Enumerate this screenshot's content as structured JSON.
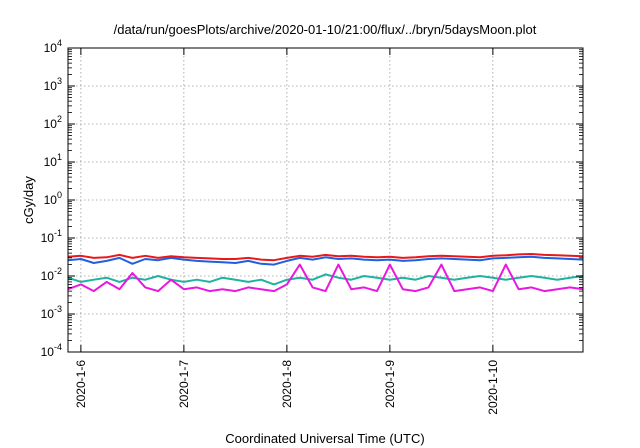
{
  "chart_data": {
    "type": "line",
    "title": "/data/run/goesPlots/archive/2020-01-10/21:00/flux/../bryn/5daysMoon.plot",
    "xlabel": "Coordinated Universal Time (UTC)",
    "ylabel": "cGy/day",
    "y_scale": "log",
    "ylim": [
      0.0001,
      10000
    ],
    "xlim": [
      "2020-01-05 21:00",
      "2020-01-10 21:00"
    ],
    "grid": true,
    "legend": "none",
    "x_ticks": [
      {
        "value": "2020-01-06 00:00",
        "label": "2020-1-6"
      },
      {
        "value": "2020-01-07 00:00",
        "label": "2020-1-7"
      },
      {
        "value": "2020-01-08 00:00",
        "label": "2020-1-8"
      },
      {
        "value": "2020-01-09 00:00",
        "label": "2020-1-9"
      },
      {
        "value": "2020-01-10 00:00",
        "label": "2020-1-10"
      }
    ],
    "y_ticks": [
      {
        "value": 0.0001,
        "base": "10",
        "exp": "-4"
      },
      {
        "value": 0.001,
        "base": "10",
        "exp": "-3"
      },
      {
        "value": 0.01,
        "base": "10",
        "exp": "-2"
      },
      {
        "value": 0.1,
        "base": "10",
        "exp": "-1"
      },
      {
        "value": 1,
        "base": "10",
        "exp": "0"
      },
      {
        "value": 10,
        "base": "10",
        "exp": "1"
      },
      {
        "value": 100,
        "base": "10",
        "exp": "2"
      },
      {
        "value": 1000,
        "base": "10",
        "exp": "3"
      },
      {
        "value": 10000,
        "base": "10",
        "exp": "4"
      }
    ],
    "series": [
      {
        "color": "#e8191a",
        "x": [
          "2020-01-05 21:00",
          "2020-01-06 00:00",
          "2020-01-06 03:00",
          "2020-01-06 06:00",
          "2020-01-06 09:00",
          "2020-01-06 12:00",
          "2020-01-06 15:00",
          "2020-01-06 18:00",
          "2020-01-06 21:00",
          "2020-01-07 00:00",
          "2020-01-07 03:00",
          "2020-01-07 06:00",
          "2020-01-07 09:00",
          "2020-01-07 12:00",
          "2020-01-07 15:00",
          "2020-01-07 18:00",
          "2020-01-07 21:00",
          "2020-01-08 00:00",
          "2020-01-08 03:00",
          "2020-01-08 06:00",
          "2020-01-08 09:00",
          "2020-01-08 12:00",
          "2020-01-08 15:00",
          "2020-01-08 18:00",
          "2020-01-08 21:00",
          "2020-01-09 00:00",
          "2020-01-09 03:00",
          "2020-01-09 06:00",
          "2020-01-09 09:00",
          "2020-01-09 12:00",
          "2020-01-09 15:00",
          "2020-01-09 18:00",
          "2020-01-09 21:00",
          "2020-01-10 00:00",
          "2020-01-10 03:00",
          "2020-01-10 06:00",
          "2020-01-10 09:00",
          "2020-01-10 12:00",
          "2020-01-10 15:00",
          "2020-01-10 18:00",
          "2020-01-10 21:00"
        ],
        "values": [
          0.032,
          0.034,
          0.03,
          0.031,
          0.036,
          0.03,
          0.034,
          0.03,
          0.033,
          0.031,
          0.03,
          0.029,
          0.028,
          0.028,
          0.03,
          0.027,
          0.026,
          0.03,
          0.034,
          0.032,
          0.036,
          0.033,
          0.034,
          0.032,
          0.031,
          0.032,
          0.03,
          0.031,
          0.033,
          0.034,
          0.033,
          0.032,
          0.031,
          0.034,
          0.035,
          0.037,
          0.038,
          0.036,
          0.035,
          0.034,
          0.033
        ]
      },
      {
        "color": "#1f5fe0",
        "x": [
          "2020-01-05 21:00",
          "2020-01-06 00:00",
          "2020-01-06 03:00",
          "2020-01-06 06:00",
          "2020-01-06 09:00",
          "2020-01-06 12:00",
          "2020-01-06 15:00",
          "2020-01-06 18:00",
          "2020-01-06 21:00",
          "2020-01-07 00:00",
          "2020-01-07 03:00",
          "2020-01-07 06:00",
          "2020-01-07 09:00",
          "2020-01-07 12:00",
          "2020-01-07 15:00",
          "2020-01-07 18:00",
          "2020-01-07 21:00",
          "2020-01-08 00:00",
          "2020-01-08 03:00",
          "2020-01-08 06:00",
          "2020-01-08 09:00",
          "2020-01-08 12:00",
          "2020-01-08 15:00",
          "2020-01-08 18:00",
          "2020-01-08 21:00",
          "2020-01-09 00:00",
          "2020-01-09 03:00",
          "2020-01-09 06:00",
          "2020-01-09 09:00",
          "2020-01-09 12:00",
          "2020-01-09 15:00",
          "2020-01-09 18:00",
          "2020-01-09 21:00",
          "2020-01-10 00:00",
          "2020-01-10 03:00",
          "2020-01-10 06:00",
          "2020-01-10 09:00",
          "2020-01-10 12:00",
          "2020-01-10 15:00",
          "2020-01-10 18:00",
          "2020-01-10 21:00"
        ],
        "values": [
          0.026,
          0.028,
          0.022,
          0.025,
          0.03,
          0.021,
          0.028,
          0.026,
          0.03,
          0.027,
          0.025,
          0.024,
          0.023,
          0.022,
          0.025,
          0.021,
          0.02,
          0.025,
          0.03,
          0.027,
          0.031,
          0.028,
          0.029,
          0.027,
          0.026,
          0.027,
          0.025,
          0.026,
          0.028,
          0.029,
          0.028,
          0.027,
          0.026,
          0.029,
          0.03,
          0.031,
          0.032,
          0.03,
          0.029,
          0.028,
          0.027
        ]
      },
      {
        "color": "#20b2a0",
        "x": [
          "2020-01-05 21:00",
          "2020-01-06 00:00",
          "2020-01-06 03:00",
          "2020-01-06 06:00",
          "2020-01-06 09:00",
          "2020-01-06 12:00",
          "2020-01-06 15:00",
          "2020-01-06 18:00",
          "2020-01-06 21:00",
          "2020-01-07 00:00",
          "2020-01-07 03:00",
          "2020-01-07 06:00",
          "2020-01-07 09:00",
          "2020-01-07 12:00",
          "2020-01-07 15:00",
          "2020-01-07 18:00",
          "2020-01-07 21:00",
          "2020-01-08 00:00",
          "2020-01-08 03:00",
          "2020-01-08 06:00",
          "2020-01-08 09:00",
          "2020-01-08 12:00",
          "2020-01-08 15:00",
          "2020-01-08 18:00",
          "2020-01-08 21:00",
          "2020-01-09 00:00",
          "2020-01-09 03:00",
          "2020-01-09 06:00",
          "2020-01-09 09:00",
          "2020-01-09 12:00",
          "2020-01-09 15:00",
          "2020-01-09 18:00",
          "2020-01-09 21:00",
          "2020-01-10 00:00",
          "2020-01-10 03:00",
          "2020-01-10 06:00",
          "2020-01-10 09:00",
          "2020-01-10 12:00",
          "2020-01-10 15:00",
          "2020-01-10 18:00",
          "2020-01-10 21:00"
        ],
        "values": [
          0.009,
          0.007,
          0.008,
          0.009,
          0.007,
          0.009,
          0.008,
          0.01,
          0.008,
          0.007,
          0.008,
          0.007,
          0.009,
          0.008,
          0.007,
          0.008,
          0.006,
          0.008,
          0.009,
          0.008,
          0.011,
          0.009,
          0.008,
          0.01,
          0.009,
          0.008,
          0.009,
          0.008,
          0.01,
          0.009,
          0.008,
          0.009,
          0.01,
          0.009,
          0.008,
          0.009,
          0.01,
          0.009,
          0.008,
          0.009,
          0.01
        ]
      },
      {
        "color": "#e818e0",
        "x": [
          "2020-01-05 21:00",
          "2020-01-06 00:00",
          "2020-01-06 03:00",
          "2020-01-06 06:00",
          "2020-01-06 09:00",
          "2020-01-06 12:00",
          "2020-01-06 15:00",
          "2020-01-06 18:00",
          "2020-01-06 21:00",
          "2020-01-07 00:00",
          "2020-01-07 03:00",
          "2020-01-07 06:00",
          "2020-01-07 09:00",
          "2020-01-07 12:00",
          "2020-01-07 15:00",
          "2020-01-07 18:00",
          "2020-01-07 21:00",
          "2020-01-08 00:00",
          "2020-01-08 03:00",
          "2020-01-08 06:00",
          "2020-01-08 09:00",
          "2020-01-08 12:00",
          "2020-01-08 15:00",
          "2020-01-08 18:00",
          "2020-01-08 21:00",
          "2020-01-09 00:00",
          "2020-01-09 03:00",
          "2020-01-09 06:00",
          "2020-01-09 09:00",
          "2020-01-09 12:00",
          "2020-01-09 15:00",
          "2020-01-09 18:00",
          "2020-01-09 21:00",
          "2020-01-10 00:00",
          "2020-01-10 03:00",
          "2020-01-10 06:00",
          "2020-01-10 09:00",
          "2020-01-10 12:00",
          "2020-01-10 15:00",
          "2020-01-10 18:00",
          "2020-01-10 21:00"
        ],
        "values": [
          0.0045,
          0.006,
          0.004,
          0.007,
          0.0045,
          0.012,
          0.005,
          0.004,
          0.008,
          0.0045,
          0.005,
          0.004,
          0.0045,
          0.004,
          0.005,
          0.0045,
          0.004,
          0.006,
          0.02,
          0.005,
          0.004,
          0.02,
          0.0045,
          0.005,
          0.004,
          0.02,
          0.0045,
          0.004,
          0.005,
          0.02,
          0.004,
          0.0045,
          0.005,
          0.004,
          0.02,
          0.0045,
          0.005,
          0.004,
          0.0045,
          0.005,
          0.0045
        ]
      }
    ]
  }
}
